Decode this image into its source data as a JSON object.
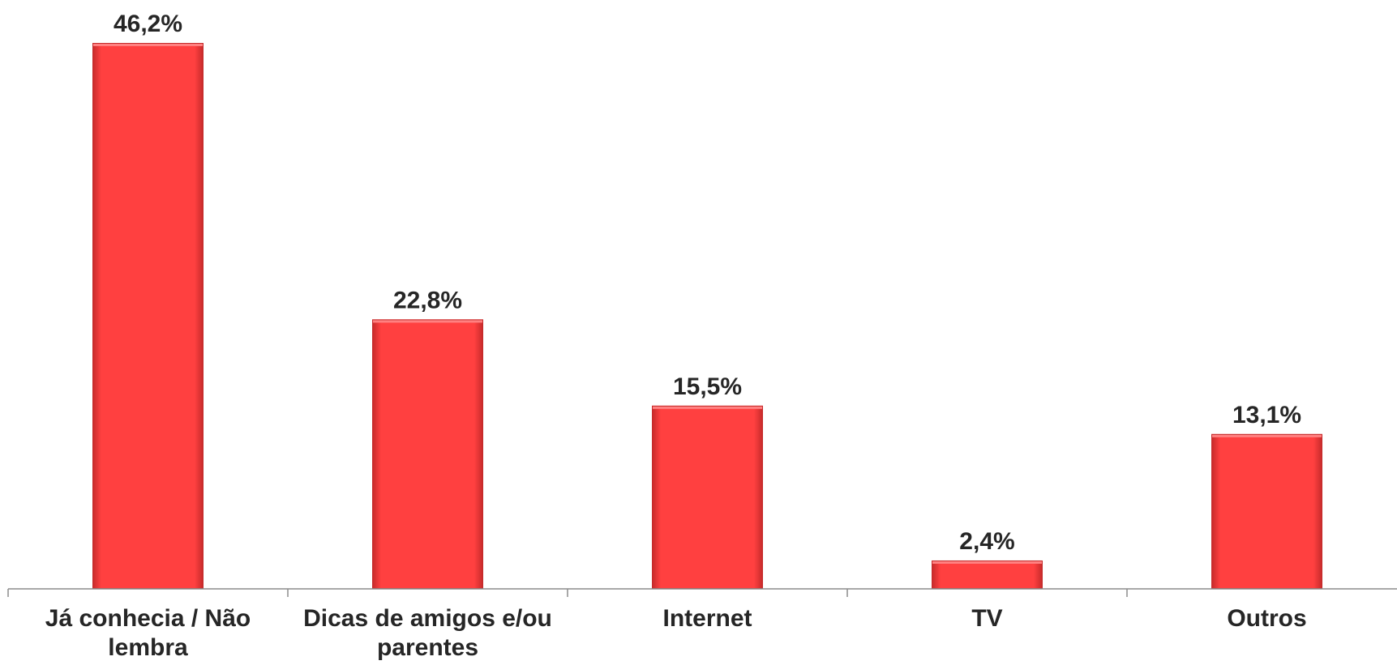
{
  "chart_data": {
    "type": "bar",
    "categories": [
      "Já conhecia / Não lembra",
      "Dicas de amigos e/ou parentes",
      "Internet",
      "TV",
      "Outros"
    ],
    "category_lines": [
      [
        "Já conhecia / Não",
        "lembra"
      ],
      [
        "Dicas de amigos e/ou",
        "parentes"
      ],
      [
        "Internet"
      ],
      [
        "TV"
      ],
      [
        "Outros"
      ]
    ],
    "values": [
      46.2,
      22.8,
      15.5,
      2.4,
      13.1
    ],
    "data_labels": [
      "46,2%",
      "22,8%",
      "15,5%",
      "2,4%",
      "13,1%"
    ],
    "unit": "%",
    "title": "",
    "xlabel": "",
    "ylabel": "",
    "ylim": [
      0,
      46.2
    ],
    "grid": false,
    "legend": "none",
    "colors": {
      "bar_fill": "#ff4040",
      "bar_edge_light": "#ff8080",
      "bar_edge_dark": "#c42a2a",
      "label_text": "#262626",
      "axis": "#8c8c8c"
    }
  }
}
